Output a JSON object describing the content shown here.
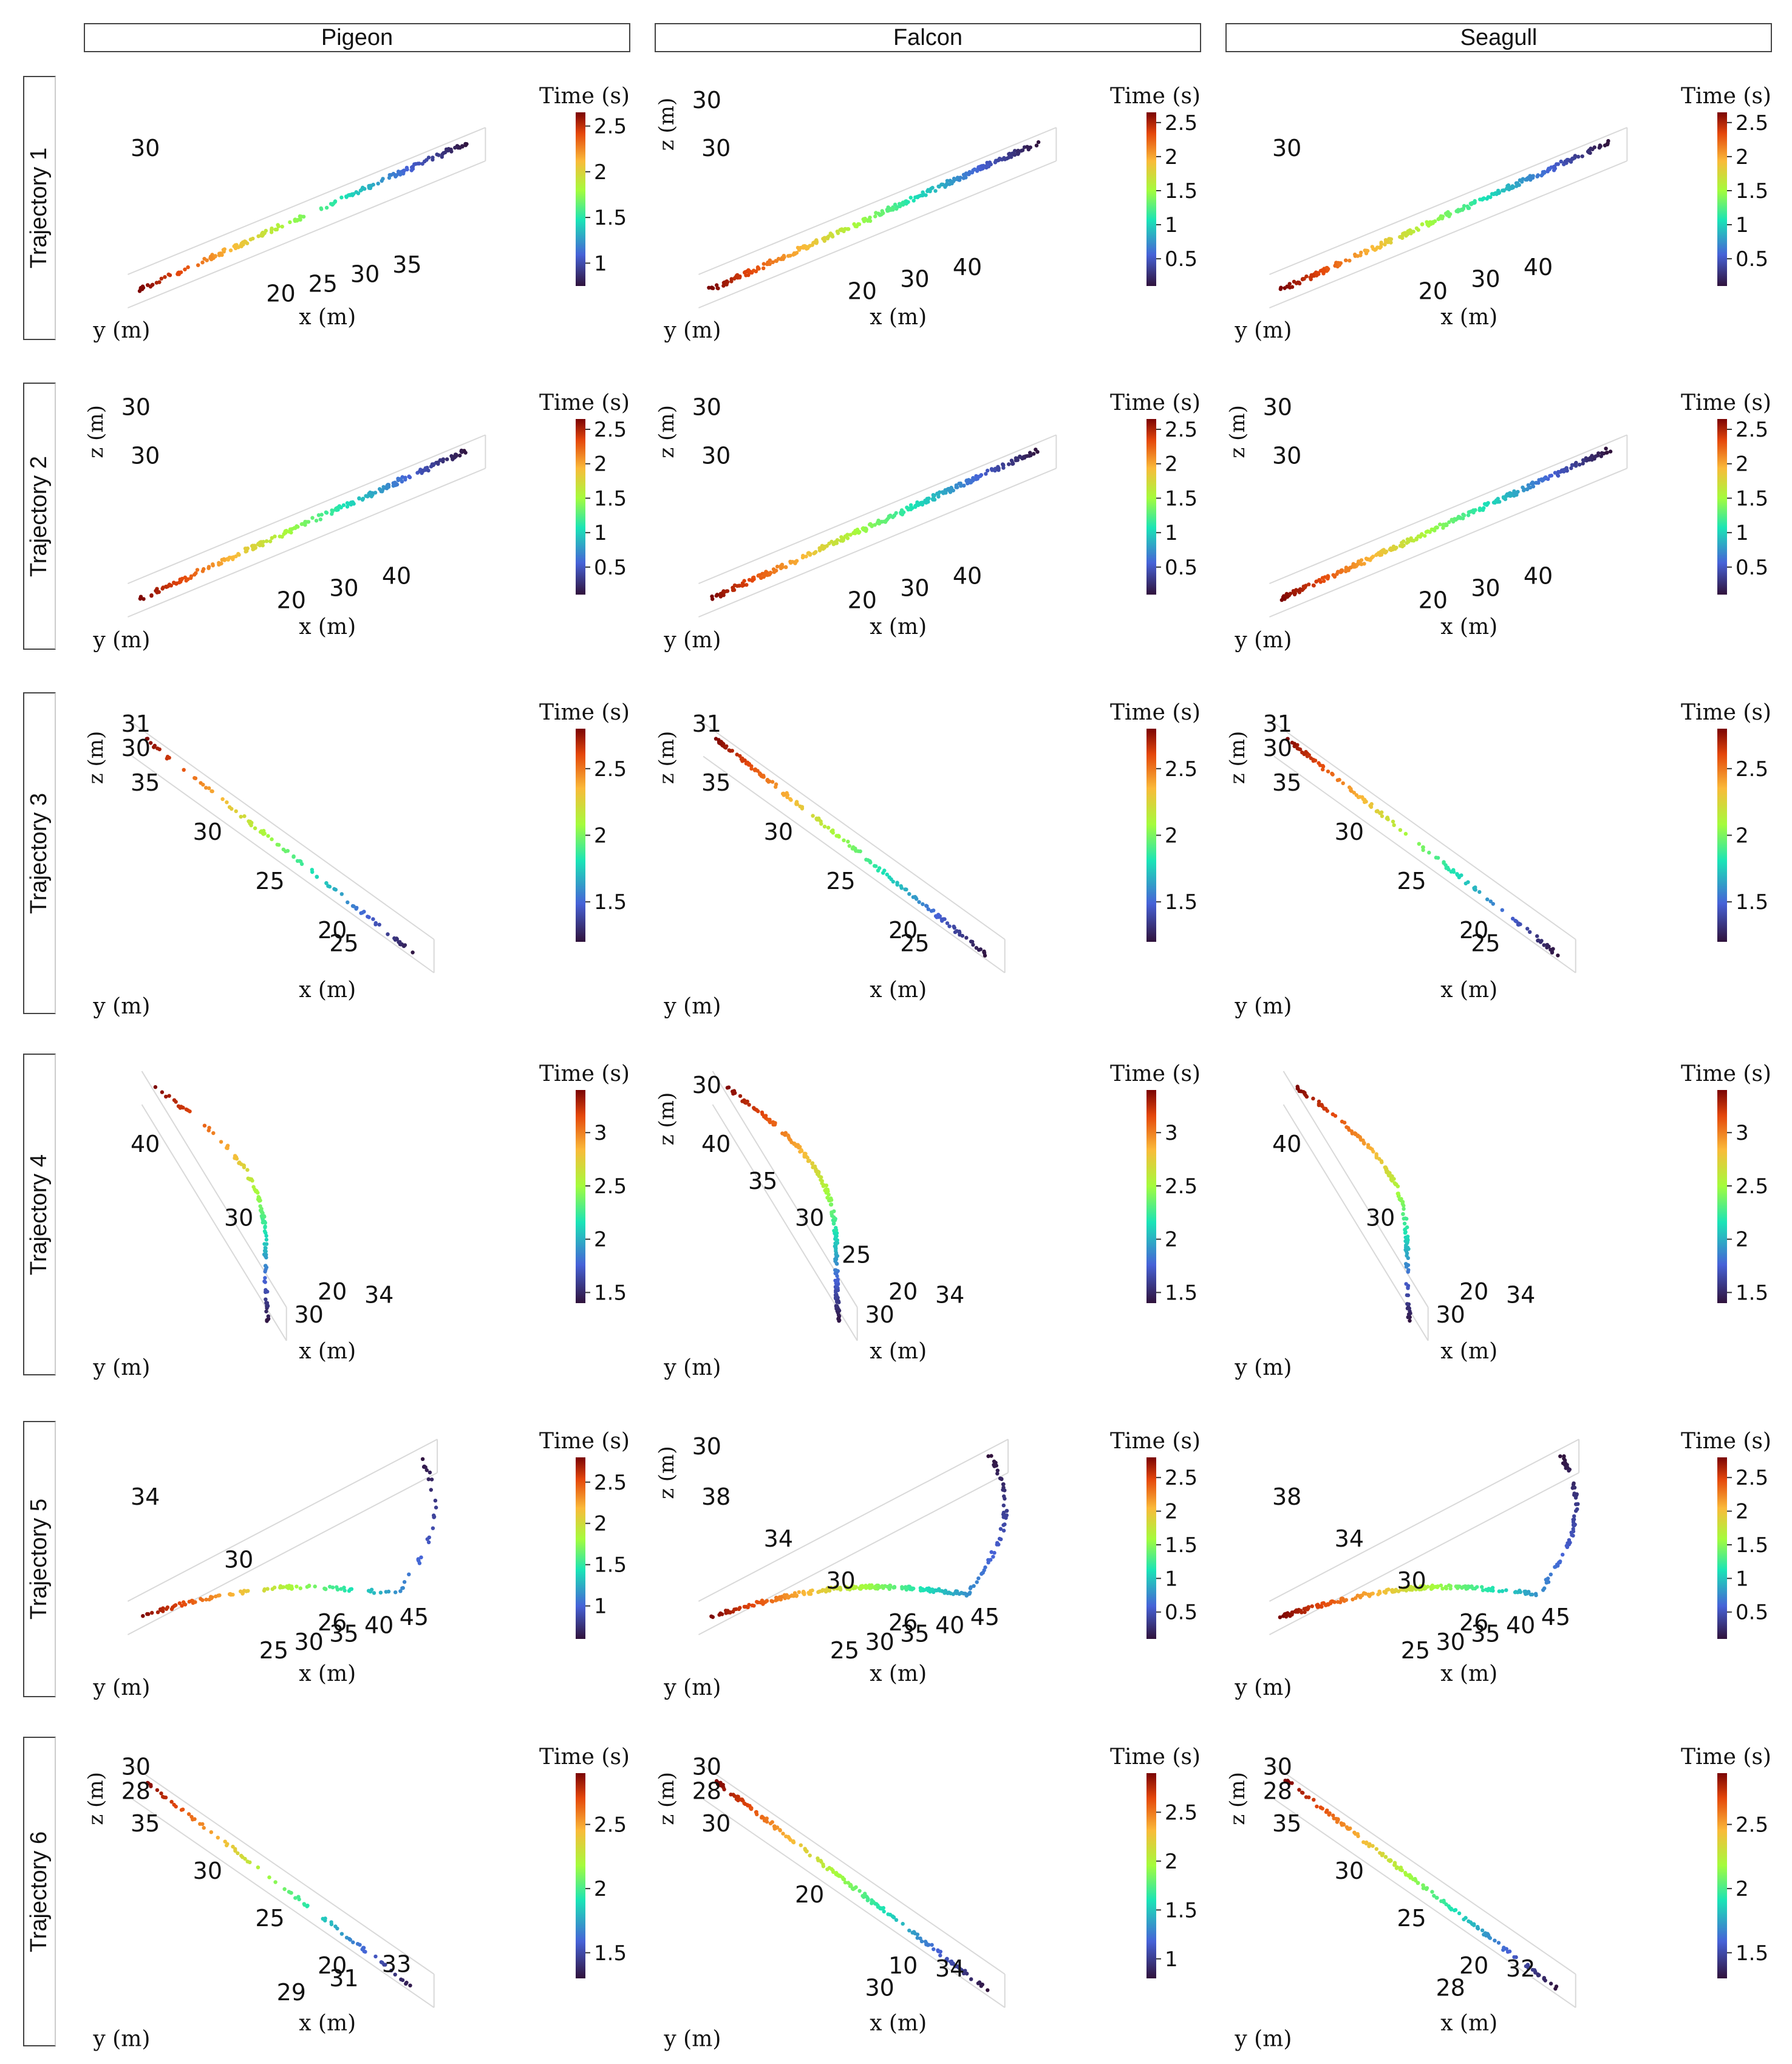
{
  "columns": [
    "Pigeon",
    "Falcon",
    "Seagull"
  ],
  "rows": [
    "Trajectory 1",
    "Trajectory 2",
    "Trajectory 3",
    "Trajectory 4",
    "Trajectory 5",
    "Trajectory 6"
  ],
  "colorbar_title": "Time (s)",
  "colormap": [
    "#30123b",
    "#4662d7",
    "#1ae4b6",
    "#a4fc3c",
    "#fabA39",
    "#e4460a",
    "#7a0403"
  ],
  "chart_data": [
    {
      "id": "t1-pigeon",
      "row": 1,
      "col": "Pigeon",
      "type": "scatter3d",
      "shape": "line",
      "points": 180,
      "xticks": [
        "20",
        "25",
        "30",
        "35"
      ],
      "yticks": [
        "30"
      ],
      "zticks": [],
      "xlabel": "x (m)",
      "ylabel": "y (m)",
      "zlabel": "",
      "cbar_ticks": [
        "1",
        "1.5",
        "2",
        "2.5"
      ],
      "tmin": 0.75,
      "tmax": 2.65
    },
    {
      "id": "t1-falcon",
      "row": 1,
      "col": "Falcon",
      "type": "scatter3d",
      "shape": "line",
      "points": 260,
      "xticks": [
        "20",
        "30",
        "40"
      ],
      "yticks": [
        "30"
      ],
      "zticks": [
        "30"
      ],
      "xlabel": "x (m)",
      "ylabel": "y (m)",
      "zlabel": "z (m)",
      "cbar_ticks": [
        "0.5",
        "1",
        "1.5",
        "2",
        "2.5"
      ],
      "tmin": 0.1,
      "tmax": 2.65
    },
    {
      "id": "t1-seagull",
      "row": 1,
      "col": "Seagull",
      "type": "scatter3d",
      "shape": "line",
      "points": 260,
      "xticks": [
        "20",
        "30",
        "40"
      ],
      "yticks": [
        "30"
      ],
      "zticks": [],
      "xlabel": "x (m)",
      "ylabel": "y (m)",
      "zlabel": "",
      "cbar_ticks": [
        "0.5",
        "1",
        "1.5",
        "2",
        "2.5"
      ],
      "tmin": 0.1,
      "tmax": 2.65
    },
    {
      "id": "t2-pigeon",
      "row": 2,
      "col": "Pigeon",
      "type": "scatter3d",
      "shape": "line",
      "points": 220,
      "xticks": [
        "20",
        "30",
        "40"
      ],
      "yticks": [
        "30"
      ],
      "zticks": [
        "30"
      ],
      "xlabel": "x (m)",
      "ylabel": "y (m)",
      "zlabel": "z (m)",
      "cbar_ticks": [
        "0.5",
        "1",
        "1.5",
        "2",
        "2.5"
      ],
      "tmin": 0.1,
      "tmax": 2.65
    },
    {
      "id": "t2-falcon",
      "row": 2,
      "col": "Falcon",
      "type": "scatter3d",
      "shape": "line",
      "points": 280,
      "xticks": [
        "20",
        "30",
        "40"
      ],
      "yticks": [
        "30"
      ],
      "zticks": [
        "30"
      ],
      "xlabel": "x (m)",
      "ylabel": "y (m)",
      "zlabel": "z (m)",
      "cbar_ticks": [
        "0.5",
        "1",
        "1.5",
        "2",
        "2.5"
      ],
      "tmin": 0.1,
      "tmax": 2.65
    },
    {
      "id": "t2-seagull",
      "row": 2,
      "col": "Seagull",
      "type": "scatter3d",
      "shape": "line",
      "points": 280,
      "xticks": [
        "20",
        "30",
        "40"
      ],
      "yticks": [
        "30"
      ],
      "zticks": [
        "30"
      ],
      "xlabel": "x (m)",
      "ylabel": "y (m)",
      "zlabel": "z (m)",
      "cbar_ticks": [
        "0.5",
        "1",
        "1.5",
        "2",
        "2.5"
      ],
      "tmin": 0.1,
      "tmax": 2.65
    },
    {
      "id": "t3-pigeon",
      "row": 3,
      "col": "Pigeon",
      "type": "scatter3d",
      "shape": "diag",
      "points": 90,
      "xticks": [
        "25"
      ],
      "yticks": [
        "35",
        "30",
        "25",
        "20"
      ],
      "zticks": [
        "31",
        "30"
      ],
      "xlabel": "x (m)",
      "ylabel": "y (m)",
      "zlabel": "z (m)",
      "cbar_ticks": [
        "1.5",
        "2",
        "2.5"
      ],
      "tmin": 1.2,
      "tmax": 2.8
    },
    {
      "id": "t3-falcon",
      "row": 3,
      "col": "Falcon",
      "type": "scatter3d",
      "shape": "diag",
      "points": 160,
      "xticks": [
        "25"
      ],
      "yticks": [
        "35",
        "30",
        "25",
        "20"
      ],
      "zticks": [
        "31"
      ],
      "xlabel": "x (m)",
      "ylabel": "y (m)",
      "zlabel": "z (m)",
      "cbar_ticks": [
        "1.5",
        "2",
        "2.5"
      ],
      "tmin": 1.2,
      "tmax": 2.8
    },
    {
      "id": "t3-seagull",
      "row": 3,
      "col": "Seagull",
      "type": "scatter3d",
      "shape": "diag",
      "points": 120,
      "xticks": [
        "25"
      ],
      "yticks": [
        "35",
        "30",
        "25",
        "20"
      ],
      "zticks": [
        "31",
        "30"
      ],
      "xlabel": "x (m)",
      "ylabel": "y (m)",
      "zlabel": "z (m)",
      "cbar_ticks": [
        "1.5",
        "2",
        "2.5"
      ],
      "tmin": 1.2,
      "tmax": 2.8
    },
    {
      "id": "t4-pigeon",
      "row": 4,
      "col": "Pigeon",
      "type": "scatter3d",
      "shape": "scurve",
      "points": 110,
      "xticks": [
        "30",
        "34"
      ],
      "yticks": [
        "40",
        "30",
        "20"
      ],
      "zticks": [],
      "xlabel": "x (m)",
      "ylabel": "y (m)",
      "zlabel": "",
      "cbar_ticks": [
        "1.5",
        "2",
        "2.5",
        "3"
      ],
      "tmin": 1.4,
      "tmax": 3.4
    },
    {
      "id": "t4-falcon",
      "row": 4,
      "col": "Falcon",
      "type": "scatter3d",
      "shape": "scurve",
      "points": 200,
      "xticks": [
        "30",
        "34"
      ],
      "yticks": [
        "40",
        "35",
        "30",
        "25",
        "20"
      ],
      "zticks": [
        "30"
      ],
      "xlabel": "x (m)",
      "ylabel": "y (m)",
      "zlabel": "z (m)",
      "cbar_ticks": [
        "1.5",
        "2",
        "2.5",
        "3"
      ],
      "tmin": 1.4,
      "tmax": 3.4
    },
    {
      "id": "t4-seagull",
      "row": 4,
      "col": "Seagull",
      "type": "scatter3d",
      "shape": "scurve",
      "points": 150,
      "xticks": [
        "30",
        "34"
      ],
      "yticks": [
        "40",
        "30",
        "20"
      ],
      "zticks": [],
      "xlabel": "x (m)",
      "ylabel": "y (m)",
      "zlabel": "",
      "cbar_ticks": [
        "1.5",
        "2",
        "2.5",
        "3"
      ],
      "tmin": 1.4,
      "tmax": 3.4
    },
    {
      "id": "t5-pigeon",
      "row": 5,
      "col": "Pigeon",
      "type": "scatter3d",
      "shape": "turn",
      "points": 120,
      "xticks": [
        "25",
        "30",
        "35",
        "40",
        "45"
      ],
      "yticks": [
        "34",
        "30",
        "26"
      ],
      "zticks": [],
      "xlabel": "x (m)",
      "ylabel": "y (m)",
      "zlabel": "",
      "cbar_ticks": [
        "1",
        "1.5",
        "2",
        "2.5"
      ],
      "tmin": 0.6,
      "tmax": 2.8
    },
    {
      "id": "t5-falcon",
      "row": 5,
      "col": "Falcon",
      "type": "scatter3d",
      "shape": "turn",
      "points": 260,
      "xticks": [
        "25",
        "30",
        "35",
        "40",
        "45"
      ],
      "yticks": [
        "38",
        "34",
        "30",
        "26"
      ],
      "zticks": [
        "30"
      ],
      "xlabel": "x (m)",
      "ylabel": "y (m)",
      "zlabel": "z (m)",
      "cbar_ticks": [
        "0.5",
        "1",
        "1.5",
        "2",
        "2.5"
      ],
      "tmin": 0.1,
      "tmax": 2.8
    },
    {
      "id": "t5-seagull",
      "row": 5,
      "col": "Seagull",
      "type": "scatter3d",
      "shape": "turn",
      "points": 260,
      "xticks": [
        "25",
        "30",
        "35",
        "40",
        "45"
      ],
      "yticks": [
        "38",
        "34",
        "30",
        "26"
      ],
      "zticks": [],
      "xlabel": "x (m)",
      "ylabel": "y (m)",
      "zlabel": "",
      "cbar_ticks": [
        "0.5",
        "1",
        "1.5",
        "2",
        "2.5"
      ],
      "tmin": 0.1,
      "tmax": 2.8
    },
    {
      "id": "t6-pigeon",
      "row": 6,
      "col": "Pigeon",
      "type": "scatter3d",
      "shape": "diag",
      "points": 80,
      "xticks": [
        "29",
        "31",
        "33"
      ],
      "yticks": [
        "35",
        "30",
        "25",
        "20"
      ],
      "zticks": [
        "30",
        "28"
      ],
      "xlabel": "x (m)",
      "ylabel": "y (m)",
      "zlabel": "z (m)",
      "cbar_ticks": [
        "1.5",
        "2",
        "2.5"
      ],
      "tmin": 1.3,
      "tmax": 2.9
    },
    {
      "id": "t6-falcon",
      "row": 6,
      "col": "Falcon",
      "type": "scatter3d",
      "shape": "diag",
      "points": 180,
      "xticks": [
        "30",
        "34"
      ],
      "yticks": [
        "30",
        "20",
        "10"
      ],
      "zticks": [
        "30",
        "28"
      ],
      "xlabel": "x (m)",
      "ylabel": "y (m)",
      "zlabel": "z (m)",
      "cbar_ticks": [
        "1",
        "1.5",
        "2",
        "2.5"
      ],
      "tmin": 0.8,
      "tmax": 2.9
    },
    {
      "id": "t6-seagull",
      "row": 6,
      "col": "Seagull",
      "type": "scatter3d",
      "shape": "diag",
      "points": 150,
      "xticks": [
        "28",
        "32"
      ],
      "yticks": [
        "35",
        "30",
        "25",
        "20"
      ],
      "zticks": [
        "30",
        "28"
      ],
      "xlabel": "x (m)",
      "ylabel": "y (m)",
      "zlabel": "z (m)",
      "cbar_ticks": [
        "1.5",
        "2",
        "2.5"
      ],
      "tmin": 1.3,
      "tmax": 2.9
    }
  ]
}
